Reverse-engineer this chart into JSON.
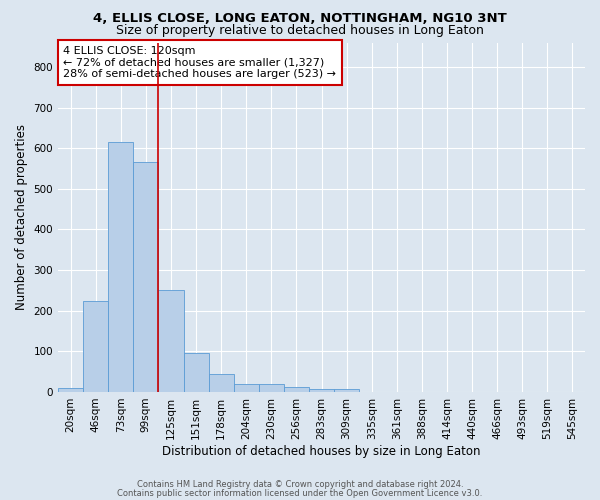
{
  "title": "4, ELLIS CLOSE, LONG EATON, NOTTINGHAM, NG10 3NT",
  "subtitle": "Size of property relative to detached houses in Long Eaton",
  "xlabel": "Distribution of detached houses by size in Long Eaton",
  "ylabel": "Number of detached properties",
  "bar_labels": [
    "20sqm",
    "46sqm",
    "73sqm",
    "99sqm",
    "125sqm",
    "151sqm",
    "178sqm",
    "204sqm",
    "230sqm",
    "256sqm",
    "283sqm",
    "309sqm",
    "335sqm",
    "361sqm",
    "388sqm",
    "414sqm",
    "440sqm",
    "466sqm",
    "493sqm",
    "519sqm",
    "545sqm"
  ],
  "bar_values": [
    10,
    225,
    615,
    565,
    250,
    95,
    45,
    20,
    20,
    13,
    8,
    8,
    0,
    0,
    0,
    0,
    0,
    0,
    0,
    0,
    0
  ],
  "bar_color": "#b8cfe8",
  "bar_edgecolor": "#5b9bd5",
  "ylim": [
    0,
    860
  ],
  "yticks": [
    0,
    100,
    200,
    300,
    400,
    500,
    600,
    700,
    800
  ],
  "vline_x": 3.5,
  "vline_color": "#cc0000",
  "annotation_box_text": "4 ELLIS CLOSE: 120sqm\n← 72% of detached houses are smaller (1,327)\n28% of semi-detached houses are larger (523) →",
  "bg_color": "#dce6f0",
  "plot_bg_color": "#dce6f0",
  "footer_line1": "Contains HM Land Registry data © Crown copyright and database right 2024.",
  "footer_line2": "Contains public sector information licensed under the Open Government Licence v3.0.",
  "title_fontsize": 9.5,
  "subtitle_fontsize": 9,
  "xlabel_fontsize": 8.5,
  "ylabel_fontsize": 8.5,
  "tick_fontsize": 7.5,
  "annot_fontsize": 8
}
